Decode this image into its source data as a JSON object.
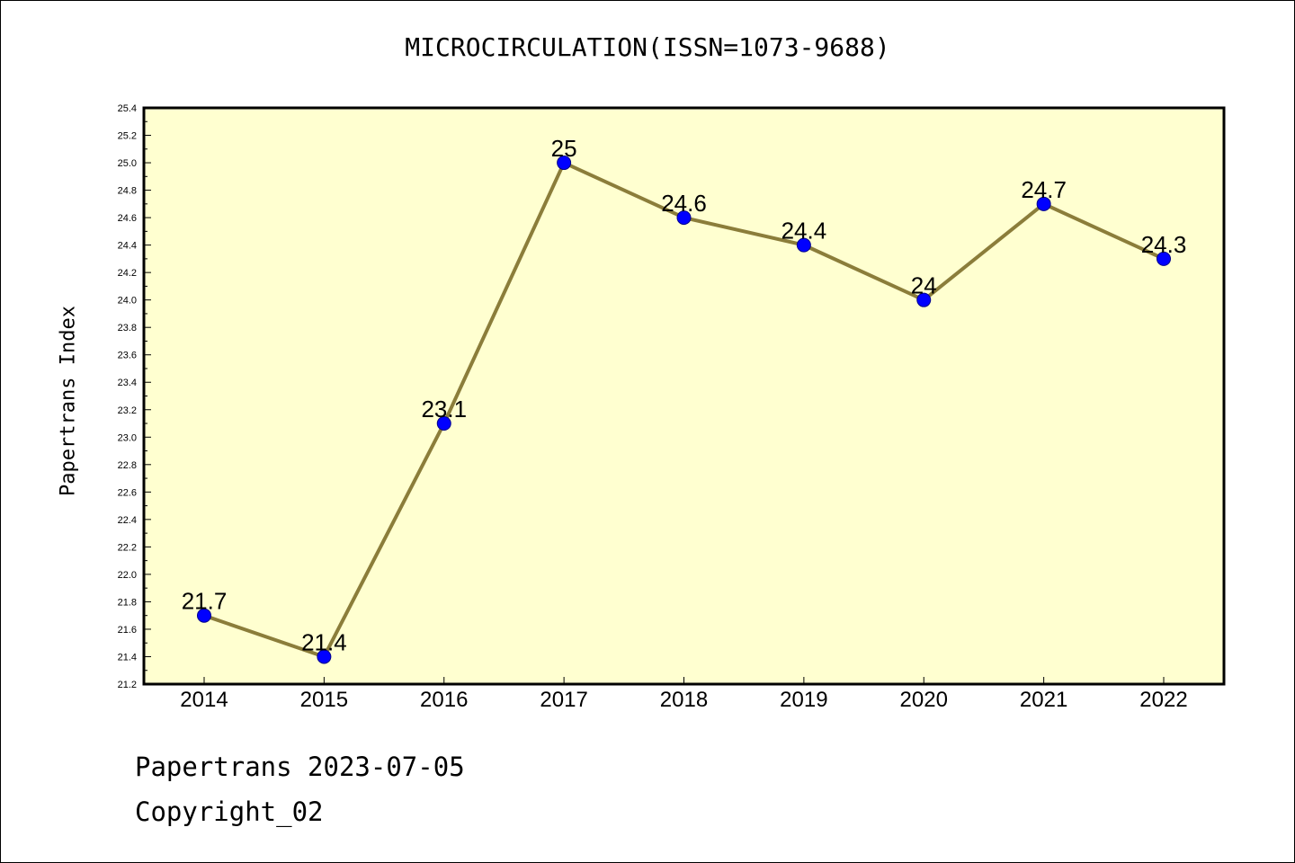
{
  "title": "MICROCIRCULATION(ISSN=1073-9688)",
  "footer": {
    "line1": "Papertrans 2023-07-05",
    "line2": "Copyright_02"
  },
  "colors": {
    "plot_background": "#ffffd0",
    "line": "#8b7d3a",
    "marker": "#0000ff"
  },
  "chart_data": {
    "type": "line",
    "title": "MICROCIRCULATION(ISSN=1073-9688)",
    "xlabel": "",
    "ylabel": "Papertrans Index",
    "categories": [
      "2014",
      "2015",
      "2016",
      "2017",
      "2018",
      "2019",
      "2020",
      "2021",
      "2022"
    ],
    "values": [
      21.7,
      21.4,
      23.1,
      25,
      24.6,
      24.4,
      24,
      24.7,
      24.3
    ],
    "data_labels": [
      "21.7",
      "21.4",
      "23.1",
      "25",
      "24.6",
      "24.4",
      "24",
      "24.7",
      "24.3"
    ],
    "ylim": [
      21.2,
      25.4
    ],
    "yticks": [
      "21.2",
      "21.4",
      "21.6",
      "21.8",
      "22.0",
      "22.2",
      "22.4",
      "22.6",
      "22.8",
      "23.0",
      "23.2",
      "23.4",
      "23.6",
      "23.8",
      "24.0",
      "24.2",
      "24.4",
      "24.6",
      "24.8",
      "25.0",
      "25.2",
      "25.4"
    ],
    "grid": false,
    "legend": "none"
  }
}
